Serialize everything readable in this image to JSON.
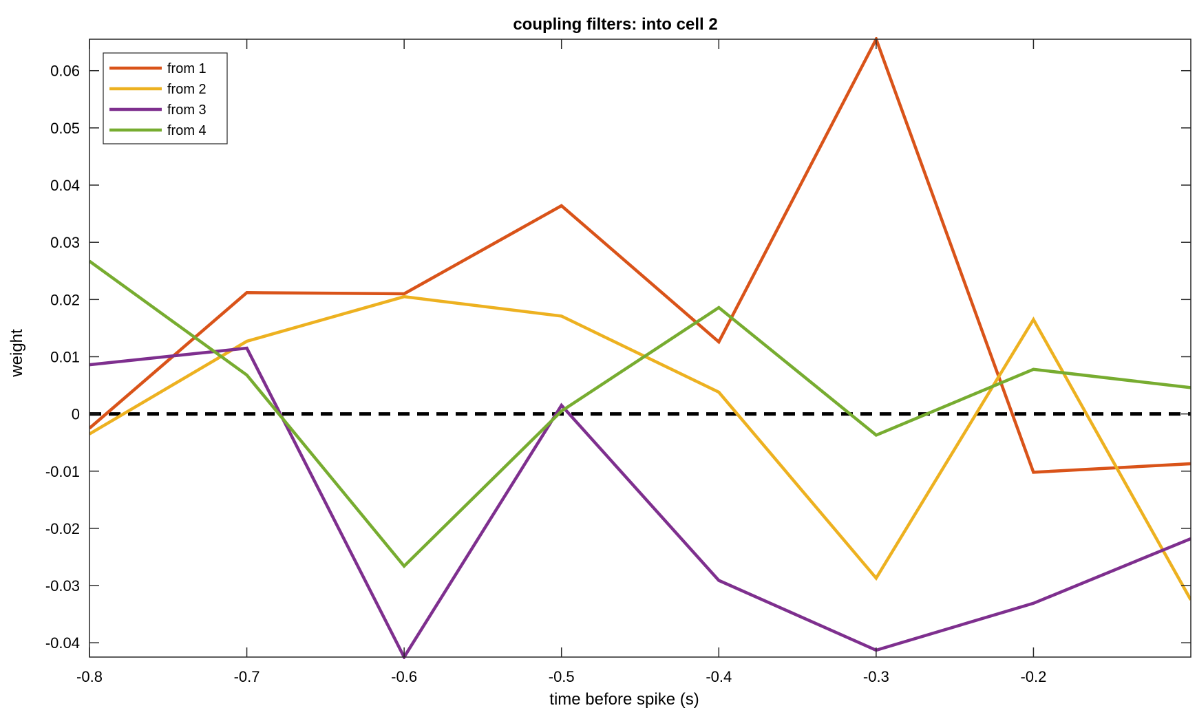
{
  "chart_data": {
    "type": "line",
    "title": "coupling filters: into cell 2",
    "xlabel": "time before spike (s)",
    "ylabel": "weight",
    "xlim": [
      -0.8,
      -0.1
    ],
    "ylim": [
      -0.0425,
      0.0655
    ],
    "xticks": [
      -0.8,
      -0.7,
      -0.6,
      -0.5,
      -0.4,
      -0.3,
      -0.2
    ],
    "xtick_labels": [
      "-0.8",
      "-0.7",
      "-0.6",
      "-0.5",
      "-0.4",
      "-0.3",
      "-0.2"
    ],
    "yticks": [
      0.06,
      0.05,
      0.04,
      0.03,
      0.02,
      0.01,
      0,
      -0.01,
      -0.02,
      -0.03,
      -0.04
    ],
    "ytick_labels": [
      "0.06",
      "0.05",
      "0.04",
      "0.03",
      "0.02",
      "0.01",
      "0",
      "-0.01",
      "-0.02",
      "-0.03",
      "-0.04"
    ],
    "grid": false,
    "legend_position": "top-left",
    "x": [
      -0.8,
      -0.7,
      -0.6,
      -0.5,
      -0.4,
      -0.3,
      -0.2,
      -0.1
    ],
    "series": [
      {
        "name": "from 1",
        "color": "#D95319",
        "values": [
          -0.0025,
          0.0212,
          0.021,
          0.0364,
          0.0126,
          0.0655,
          -0.0102,
          -0.0087
        ]
      },
      {
        "name": "from 2",
        "color": "#EDB120",
        "values": [
          -0.0035,
          0.0127,
          0.0205,
          0.0171,
          0.0038,
          -0.0287,
          0.0165,
          -0.0325
        ]
      },
      {
        "name": "from 3",
        "color": "#7E2F8E",
        "values": [
          0.0086,
          0.0115,
          -0.0425,
          0.0015,
          -0.0291,
          -0.0413,
          -0.0331,
          -0.0218
        ]
      },
      {
        "name": "from 4",
        "color": "#77AC30",
        "values": [
          0.0267,
          0.0068,
          -0.0266,
          0.0005,
          0.0186,
          -0.0037,
          0.0078,
          0.0046
        ]
      }
    ],
    "reference_line": {
      "y": 0,
      "style": "dashed",
      "color": "#000000"
    }
  }
}
